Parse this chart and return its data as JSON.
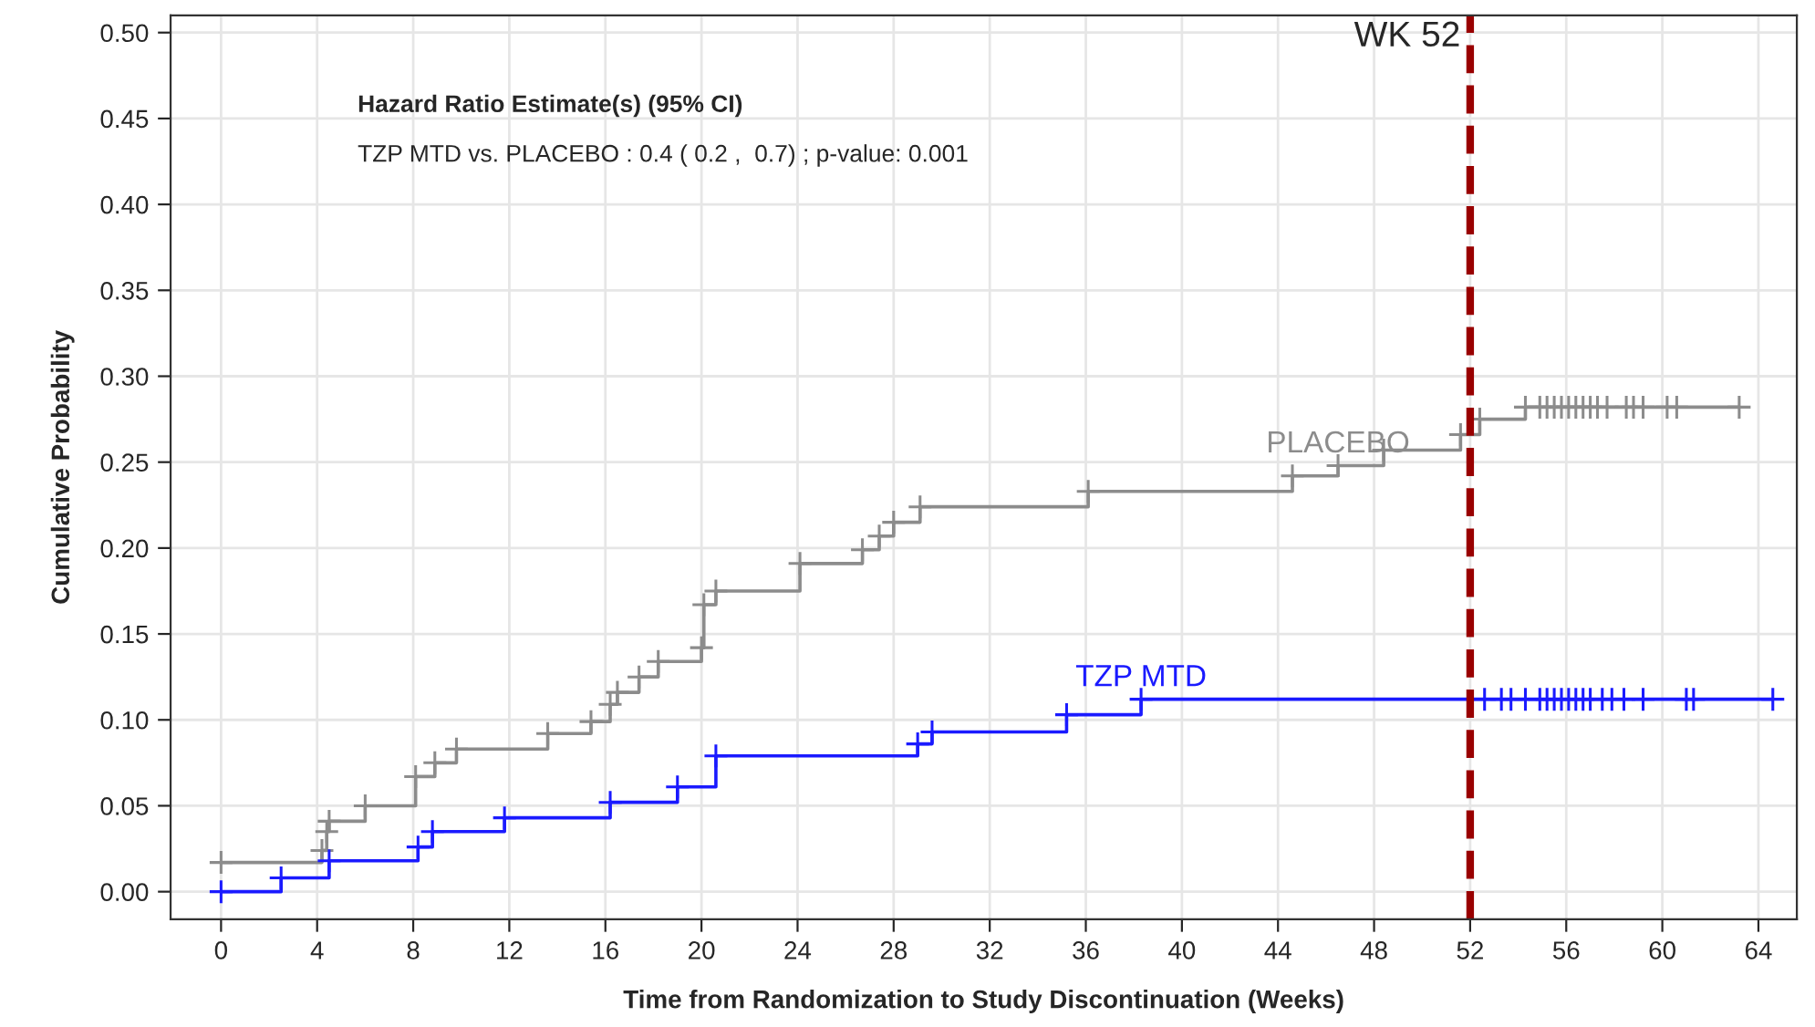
{
  "chart_data": {
    "type": "step",
    "xlabel": "Time from Randomization to Study Discontinuation (Weeks)",
    "ylabel": "Cumulative Probability",
    "xlim": [
      -2.1,
      65.6
    ],
    "ylim": [
      -0.016,
      0.51
    ],
    "xticks": [
      0,
      4,
      8,
      12,
      16,
      20,
      24,
      28,
      32,
      36,
      40,
      44,
      48,
      52,
      56,
      60,
      64
    ],
    "yticks": [
      {
        "value": 0,
        "label": "0.00"
      },
      {
        "value": 0.05,
        "label": "0.05"
      },
      {
        "value": 0.1,
        "label": "0.10"
      },
      {
        "value": 0.15,
        "label": "0.15"
      },
      {
        "value": 0.2,
        "label": "0.20"
      },
      {
        "value": 0.25,
        "label": "0.25"
      },
      {
        "value": 0.3,
        "label": "0.30"
      },
      {
        "value": 0.35,
        "label": "0.35"
      },
      {
        "value": 0.4,
        "label": "0.40"
      },
      {
        "value": 0.45,
        "label": "0.45"
      },
      {
        "value": 0.5,
        "label": "0.50"
      }
    ],
    "grid": true,
    "legend": false,
    "marker": "cross",
    "line_style": "solid",
    "series": [
      {
        "name": "PLACEBO",
        "color": "#8c8c8c",
        "x": [
          0,
          4.2,
          4.4,
          4.5,
          6,
          8.1,
          8.9,
          9.8,
          13.6,
          15.4,
          16.2,
          16.5,
          17.4,
          18.2,
          20,
          20.1,
          20.6,
          24.1,
          26.7,
          27.4,
          28,
          29.1,
          36.1,
          44.6,
          46.5,
          48.4,
          51.6,
          52.4,
          54.3,
          54.9,
          55.2,
          55.5,
          55.8,
          56.1,
          56.4,
          56.7,
          57,
          57.3,
          57.7,
          58.5,
          58.8,
          59.2,
          60.2,
          60.6,
          63.2
        ],
        "values": [
          0.017,
          0.024,
          0.035,
          0.041,
          0.05,
          0.067,
          0.075,
          0.083,
          0.092,
          0.099,
          0.109,
          0.116,
          0.125,
          0.134,
          0.142,
          0.167,
          0.175,
          0.191,
          0.199,
          0.207,
          0.215,
          0.224,
          0.233,
          0.242,
          0.248,
          0.257,
          0.266,
          0.275,
          0.282,
          0.282,
          0.282,
          0.282,
          0.282,
          0.282,
          0.282,
          0.282,
          0.282,
          0.282,
          0.282,
          0.282,
          0.282,
          0.282,
          0.282,
          0.282,
          0.282
        ]
      },
      {
        "name": "TZP MTD",
        "color": "#1a1aff",
        "x": [
          0,
          2.5,
          4.5,
          8.2,
          8.8,
          11.8,
          16.2,
          19,
          20.6,
          29,
          29.6,
          35.2,
          38.3,
          52.6,
          53.3,
          53.7,
          54.3,
          54.9,
          55.2,
          55.5,
          55.8,
          56.1,
          56.4,
          56.7,
          57,
          57.5,
          57.9,
          58.4,
          59.2,
          61,
          61.3,
          64.6
        ],
        "values": [
          0,
          0.008,
          0.018,
          0.026,
          0.035,
          0.043,
          0.052,
          0.061,
          0.079,
          0.086,
          0.093,
          0.103,
          0.112,
          0.112,
          0.112,
          0.112,
          0.112,
          0.112,
          0.112,
          0.112,
          0.112,
          0.112,
          0.112,
          0.112,
          0.112,
          0.112,
          0.112,
          0.112,
          0.112,
          0.112,
          0.112,
          0.112
        ]
      }
    ],
    "ref_lines": [
      {
        "axis": "x",
        "value": 52,
        "label": "WK 52",
        "color": "#990000",
        "line_style": "dashed"
      }
    ],
    "annotations": [
      "Hazard Ratio Estimate(s) (95% CI)",
      "TZP MTD vs. PLACEBO : 0.4 ( 0.2 ,  0.7) ; p-value: 0.001"
    ]
  }
}
